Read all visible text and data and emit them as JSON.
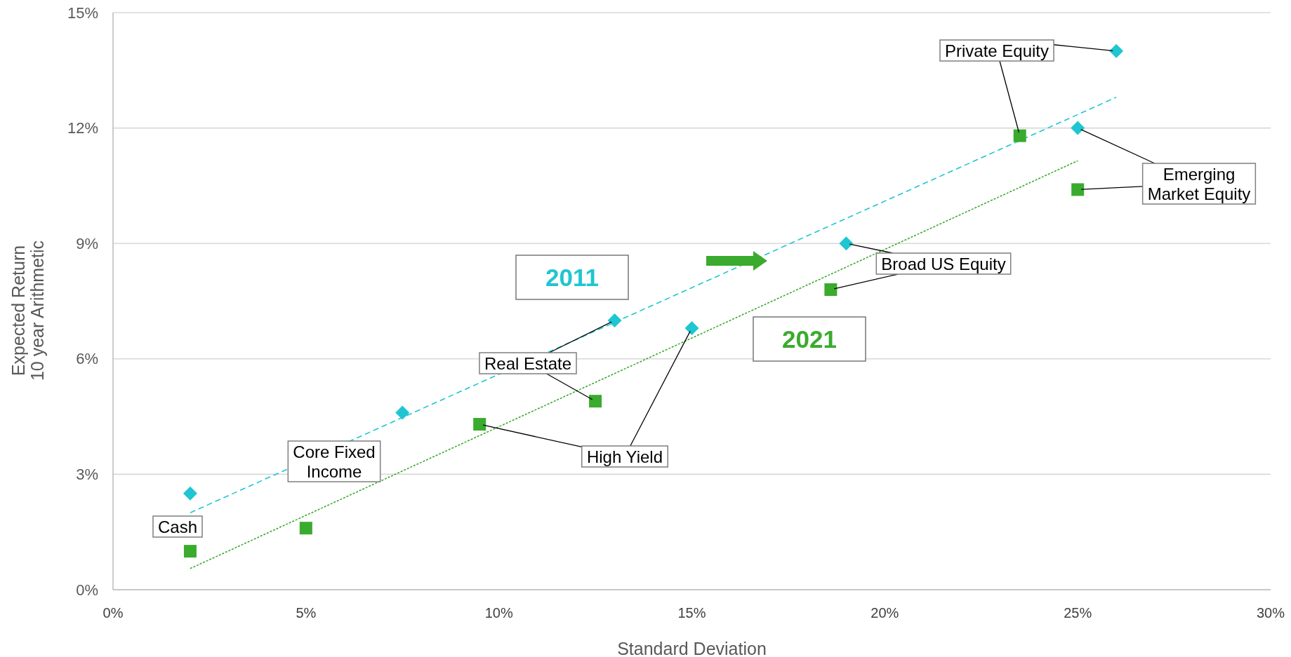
{
  "chart_data": {
    "type": "scatter",
    "xlabel": "Standard Deviation",
    "ylabel": "Expected Return\n10 year Arithmetic",
    "xlim": [
      0,
      30
    ],
    "xticks": [
      {
        "value": 0,
        "label": "0%"
      },
      {
        "value": 5,
        "label": "5%"
      },
      {
        "value": 10,
        "label": "10%"
      },
      {
        "value": 15,
        "label": "15%"
      },
      {
        "value": 20,
        "label": "20%"
      },
      {
        "value": 25,
        "label": "25%"
      },
      {
        "value": 30,
        "label": "30%"
      }
    ],
    "ylim": [
      0,
      15
    ],
    "yticks": [
      {
        "value": 0,
        "label": "0%"
      },
      {
        "value": 3,
        "label": "3%"
      },
      {
        "value": 6,
        "label": "6%"
      },
      {
        "value": 9,
        "label": "9%"
      },
      {
        "value": 12,
        "label": "12%"
      },
      {
        "value": 15,
        "label": "15%"
      }
    ],
    "grid": "y",
    "series": [
      {
        "name": "2011",
        "marker": "diamond",
        "color": "#1fc6d1",
        "x": [
          2,
          7.5,
          13,
          15,
          19,
          26,
          25
        ],
        "values": [
          2.5,
          4.6,
          7.0,
          6.8,
          9.0,
          14.0,
          12.0
        ]
      },
      {
        "name": "2021",
        "marker": "square",
        "color": "#3aab2e",
        "x": [
          2,
          5,
          12.5,
          9.5,
          18.6,
          23.5,
          25
        ],
        "values": [
          1.0,
          1.6,
          4.9,
          4.3,
          7.8,
          11.8,
          10.4
        ]
      },
      {
        "type": "line",
        "color": "#1fc6d1",
        "line_style": "dashed",
        "x": [
          2,
          26
        ],
        "values": [
          2.0,
          12.8
        ]
      },
      {
        "type": "line",
        "color": "#3aab2e",
        "line_style": "dotted",
        "x": [
          2,
          25
        ],
        "values": [
          0.55,
          11.15
        ]
      }
    ],
    "annotations": [
      "Cash",
      "Core Fixed\nIncome",
      {
        "text": "Real Estate",
        "x": 13,
        "y": 7.0
      },
      {
        "text": "High Yield",
        "x": 9.5,
        "y": 4.3
      },
      {
        "text": "Broad US Equity",
        "x": 19,
        "y": 9.0
      },
      {
        "text": "Private Equity",
        "x": 26,
        "y": 14.0
      },
      {
        "text": "Emerging\nMarket Equity",
        "x": 25,
        "y": 12.0
      }
    ]
  }
}
